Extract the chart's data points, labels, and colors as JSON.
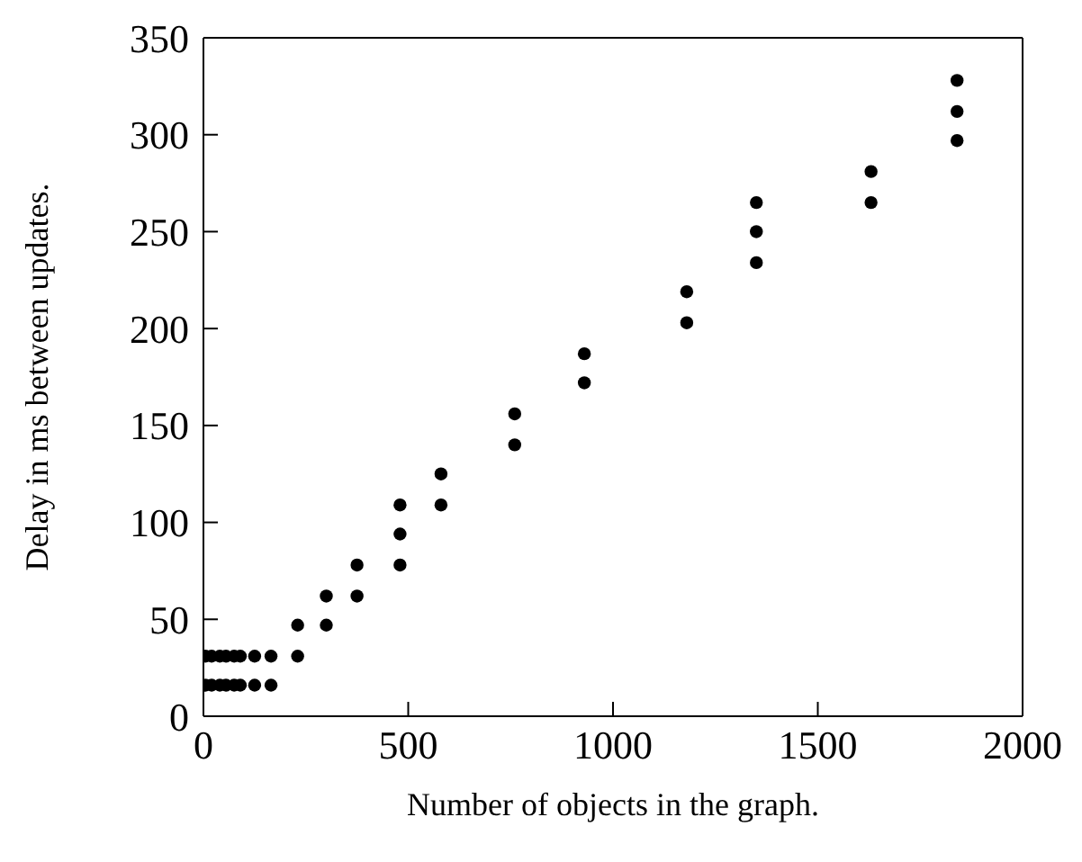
{
  "chart_data": {
    "type": "scatter",
    "xlabel": "Number of objects in the graph.",
    "ylabel": "Delay in ms between updates.",
    "x": [
      5,
      20,
      40,
      55,
      75,
      90,
      125,
      165,
      5,
      20,
      40,
      55,
      75,
      90,
      125,
      165,
      230,
      230,
      300,
      300,
      375,
      375,
      480,
      480,
      480,
      580,
      580,
      760,
      760,
      930,
      930,
      1180,
      1180,
      1350,
      1350,
      1350,
      1630,
      1630,
      1840,
      1840,
      1840
    ],
    "values": [
      16,
      16,
      16,
      16,
      16,
      16,
      16,
      16,
      31,
      31,
      31,
      31,
      31,
      31,
      31,
      31,
      31,
      47,
      47,
      62,
      62,
      78,
      78,
      94,
      109,
      109,
      125,
      140,
      156,
      172,
      187,
      203,
      219,
      234,
      250,
      265,
      265,
      281,
      297,
      312,
      328
    ],
    "color": "#000000",
    "marker": "circle",
    "xlim": [
      0,
      2000
    ],
    "xticks": [
      0,
      500,
      1000,
      1500,
      2000
    ],
    "ylim": [
      0,
      350
    ],
    "yticks": [
      0,
      50,
      100,
      150,
      200,
      250,
      300,
      350
    ]
  }
}
